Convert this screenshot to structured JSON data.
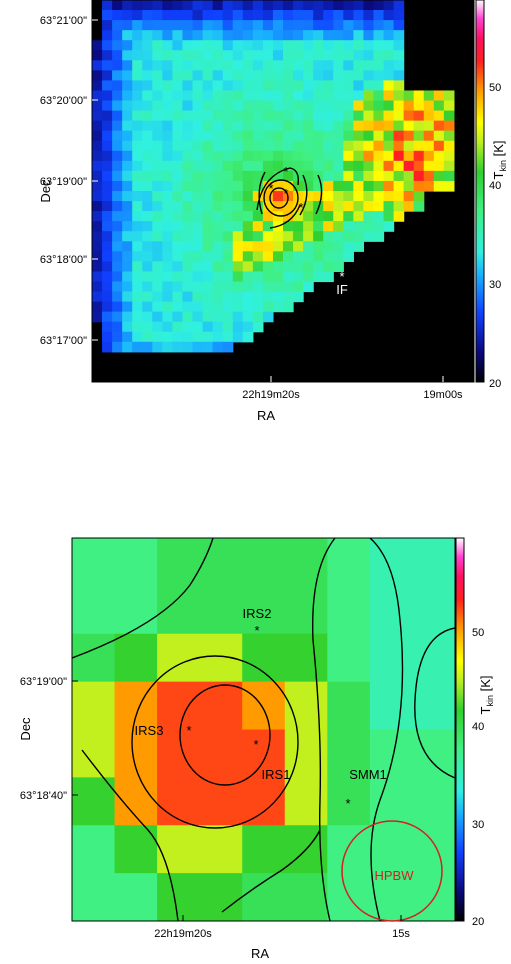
{
  "chart_data": [
    {
      "type": "heatmap",
      "title": "",
      "xlabel": "RA",
      "ylabel": "Dec",
      "x_ticks": [
        "22h19m20s",
        "19m00s"
      ],
      "y_ticks": [
        "63°21'00\"",
        "63°20'00\"",
        "63°19'00\"",
        "63°18'00\"",
        "63°17'00\""
      ],
      "colorbar": {
        "label_main": "T",
        "label_sub": "kin",
        "label_unit": "[K]",
        "ticks": [
          "20",
          "30",
          "40",
          "50"
        ],
        "range": [
          20,
          58
        ]
      },
      "peak_region": "central red core ~48-52 K near IRS sources; elevated 40-58 K along eastern edge",
      "markers": [
        {
          "label": "IF"
        }
      ],
      "contours": true
    },
    {
      "type": "heatmap",
      "title": "",
      "xlabel": "RA",
      "ylabel": "Dec",
      "x_ticks": [
        "22h19m20s",
        "15s"
      ],
      "y_ticks": [
        "63°19'00\"",
        "63°18'40\""
      ],
      "colorbar": {
        "label_main": "T",
        "label_sub": "kin",
        "label_unit": "[K]",
        "ticks": [
          "20",
          "30",
          "40",
          "50"
        ],
        "range": [
          20,
          58
        ]
      },
      "sources": [
        {
          "label": "IRS2"
        },
        {
          "label": "IRS3"
        },
        {
          "label": "IRS1"
        },
        {
          "label": "SMM1"
        }
      ],
      "beam_label": "HPBW",
      "values_grid": [
        [
          37,
          37,
          39,
          39,
          39,
          39,
          37,
          35,
          35
        ],
        [
          37,
          37,
          39,
          39,
          39,
          39,
          37,
          35,
          35
        ],
        [
          39,
          41,
          44,
          44,
          41,
          41,
          37,
          35,
          35
        ],
        [
          44,
          49,
          51,
          51,
          49,
          44,
          39,
          35,
          35
        ],
        [
          44,
          49,
          51,
          51,
          51,
          44,
          39,
          37,
          37
        ],
        [
          41,
          49,
          51,
          51,
          51,
          44,
          39,
          37,
          37
        ],
        [
          37,
          41,
          44,
          44,
          41,
          41,
          37,
          37,
          37
        ],
        [
          37,
          37,
          41,
          41,
          39,
          39,
          37,
          37,
          37
        ]
      ],
      "contours": true
    }
  ]
}
